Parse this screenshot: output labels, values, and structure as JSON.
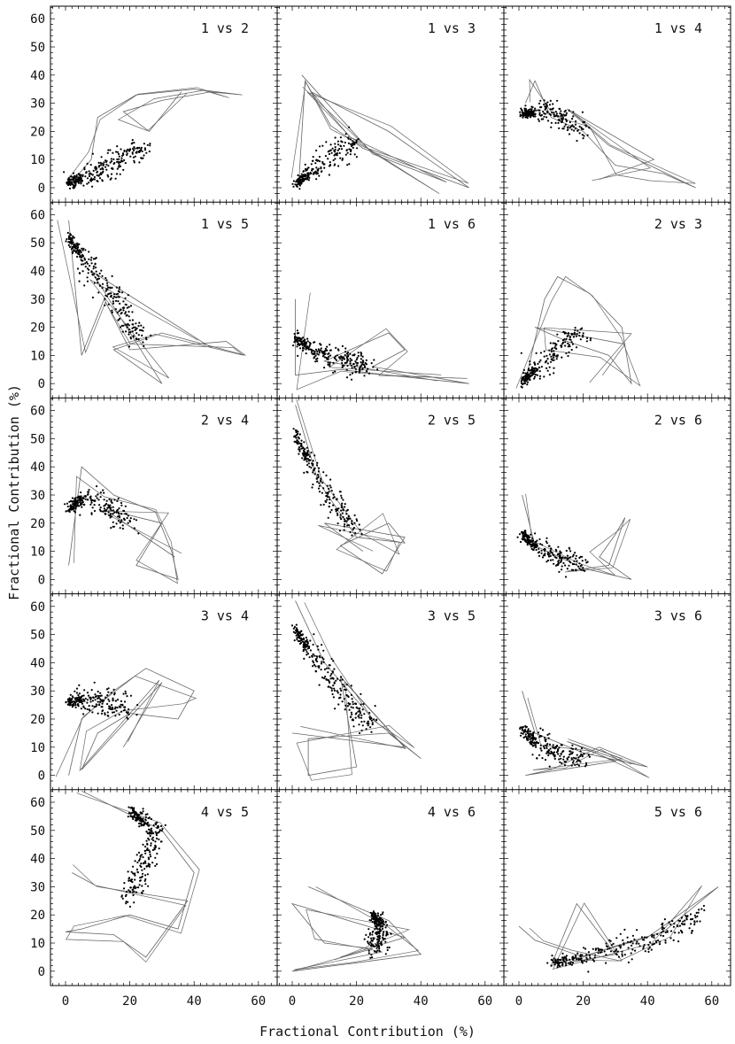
{
  "figure": {
    "x_axis_label": "Fractional Contribution   (%)",
    "y_axis_label": "Fractional Contribution   (%)"
  },
  "chart_data": {
    "type": "scatter",
    "layout": "5x3 grid of scatter plots with overlaid trajectory lines",
    "xlabel": "Fractional Contribution   (%)",
    "ylabel": "Fractional Contribution   (%)",
    "xlim": [
      -5,
      64
    ],
    "ylim": [
      -4,
      64
    ],
    "x_ticks": [
      0,
      20,
      40,
      60
    ],
    "y_ticks": [
      0,
      10,
      20,
      30,
      40,
      50,
      60
    ],
    "grid": false,
    "colors": {
      "points": "#000000",
      "lines": "#666666",
      "axes": "#000000"
    },
    "panels": [
      {
        "title": "1 vs 2",
        "cluster": [
          [
            1,
            2
          ],
          [
            5,
            3
          ],
          [
            10,
            6
          ],
          [
            15,
            9
          ],
          [
            20,
            12
          ],
          [
            24,
            14
          ]
        ],
        "trajectory": [
          [
            2,
            2
          ],
          [
            8,
            10
          ],
          [
            10,
            25
          ],
          [
            22,
            33
          ],
          [
            40,
            35
          ],
          [
            55,
            33
          ],
          [
            45,
            34
          ],
          [
            30,
            31
          ],
          [
            18,
            27
          ],
          [
            26,
            20
          ],
          [
            36,
            34
          ]
        ]
      },
      {
        "title": "1 vs 3",
        "cluster": [
          [
            1,
            1
          ],
          [
            5,
            5
          ],
          [
            10,
            9
          ],
          [
            15,
            13
          ],
          [
            20,
            16
          ]
        ],
        "trajectory": [
          [
            2,
            1
          ],
          [
            4,
            38
          ],
          [
            12,
            22
          ],
          [
            22,
            14
          ],
          [
            55,
            0
          ],
          [
            30,
            20
          ],
          [
            6,
            34
          ],
          [
            18,
            18
          ],
          [
            48,
            2
          ],
          [
            25,
            12
          ],
          [
            3,
            40
          ]
        ]
      },
      {
        "title": "1 vs 4",
        "cluster": [
          [
            1,
            26
          ],
          [
            5,
            27
          ],
          [
            10,
            27
          ],
          [
            15,
            24
          ],
          [
            20,
            20
          ]
        ],
        "trajectory": [
          [
            2,
            30
          ],
          [
            5,
            38
          ],
          [
            10,
            25
          ],
          [
            20,
            20
          ],
          [
            30,
            8
          ],
          [
            45,
            5
          ],
          [
            55,
            0
          ],
          [
            28,
            15
          ],
          [
            15,
            28
          ],
          [
            42,
            10
          ],
          [
            25,
            3
          ]
        ]
      },
      {
        "title": "1 vs 5",
        "cluster": [
          [
            1,
            52
          ],
          [
            5,
            45
          ],
          [
            10,
            38
          ],
          [
            15,
            30
          ],
          [
            20,
            22
          ],
          [
            24,
            15
          ]
        ],
        "trajectory": [
          [
            1,
            58
          ],
          [
            5,
            10
          ],
          [
            12,
            30
          ],
          [
            20,
            12
          ],
          [
            50,
            15
          ],
          [
            56,
            10
          ],
          [
            30,
            18
          ],
          [
            15,
            12
          ],
          [
            30,
            0
          ],
          [
            8,
            40
          ],
          [
            45,
            13
          ]
        ]
      },
      {
        "title": "1 vs 6",
        "cluster": [
          [
            1,
            16
          ],
          [
            5,
            13
          ],
          [
            10,
            10
          ],
          [
            15,
            8
          ],
          [
            20,
            7
          ],
          [
            24,
            6
          ]
        ],
        "trajectory": [
          [
            1,
            30
          ],
          [
            1,
            3
          ],
          [
            15,
            5
          ],
          [
            30,
            3
          ],
          [
            55,
            0
          ],
          [
            25,
            6
          ],
          [
            35,
            12
          ],
          [
            30,
            18
          ],
          [
            10,
            8
          ],
          [
            45,
            1
          ]
        ]
      },
      {
        "title": "2 vs 3",
        "cluster": [
          [
            1,
            1
          ],
          [
            5,
            5
          ],
          [
            10,
            10
          ],
          [
            15,
            15
          ],
          [
            20,
            18
          ]
        ],
        "trajectory": [
          [
            2,
            1
          ],
          [
            8,
            30
          ],
          [
            12,
            38
          ],
          [
            22,
            32
          ],
          [
            32,
            20
          ],
          [
            35,
            0
          ],
          [
            28,
            10
          ],
          [
            15,
            15
          ],
          [
            5,
            20
          ],
          [
            33,
            14
          ],
          [
            26,
            3
          ]
        ]
      },
      {
        "title": "2 vs 4",
        "cluster": [
          [
            1,
            25
          ],
          [
            5,
            29
          ],
          [
            10,
            27
          ],
          [
            15,
            24
          ],
          [
            20,
            20
          ]
        ],
        "trajectory": [
          [
            1,
            5
          ],
          [
            5,
            40
          ],
          [
            15,
            30
          ],
          [
            28,
            24
          ],
          [
            33,
            10
          ],
          [
            35,
            0
          ],
          [
            22,
            5
          ],
          [
            30,
            20
          ],
          [
            12,
            25
          ],
          [
            34,
            8
          ]
        ]
      },
      {
        "title": "2 vs 5",
        "cluster": [
          [
            1,
            52
          ],
          [
            5,
            42
          ],
          [
            10,
            32
          ],
          [
            15,
            24
          ],
          [
            20,
            18
          ]
        ],
        "trajectory": [
          [
            1,
            62
          ],
          [
            8,
            35
          ],
          [
            20,
            15
          ],
          [
            35,
            13
          ],
          [
            30,
            20
          ],
          [
            15,
            12
          ],
          [
            28,
            2
          ],
          [
            35,
            15
          ],
          [
            10,
            20
          ],
          [
            22,
            10
          ]
        ]
      },
      {
        "title": "2 vs 6",
        "cluster": [
          [
            1,
            16
          ],
          [
            5,
            12
          ],
          [
            10,
            9
          ],
          [
            15,
            7
          ],
          [
            20,
            5
          ]
        ],
        "trajectory": [
          [
            1,
            30
          ],
          [
            5,
            12
          ],
          [
            20,
            4
          ],
          [
            35,
            0
          ],
          [
            25,
            8
          ],
          [
            30,
            16
          ],
          [
            33,
            22
          ],
          [
            28,
            5
          ],
          [
            15,
            3
          ]
        ]
      },
      {
        "title": "3 vs 4",
        "cluster": [
          [
            1,
            26
          ],
          [
            5,
            27
          ],
          [
            10,
            27
          ],
          [
            15,
            25
          ],
          [
            20,
            24
          ]
        ],
        "trajectory": [
          [
            1,
            0
          ],
          [
            5,
            20
          ],
          [
            15,
            30
          ],
          [
            25,
            38
          ],
          [
            40,
            30
          ],
          [
            35,
            20
          ],
          [
            20,
            22
          ],
          [
            10,
            15
          ],
          [
            5,
            2
          ],
          [
            30,
            33
          ],
          [
            18,
            10
          ]
        ]
      },
      {
        "title": "3 vs 5",
        "cluster": [
          [
            1,
            52
          ],
          [
            5,
            45
          ],
          [
            10,
            38
          ],
          [
            15,
            30
          ],
          [
            20,
            22
          ],
          [
            25,
            18
          ]
        ],
        "trajectory": [
          [
            1,
            62
          ],
          [
            10,
            40
          ],
          [
            25,
            20
          ],
          [
            40,
            6
          ],
          [
            30,
            15
          ],
          [
            5,
            13
          ],
          [
            5,
            0
          ],
          [
            20,
            3
          ],
          [
            15,
            35
          ],
          [
            35,
            10
          ],
          [
            0,
            15
          ]
        ]
      },
      {
        "title": "3 vs 6",
        "cluster": [
          [
            1,
            16
          ],
          [
            5,
            12
          ],
          [
            10,
            9
          ],
          [
            15,
            7
          ],
          [
            20,
            6
          ]
        ],
        "trajectory": [
          [
            1,
            30
          ],
          [
            5,
            15
          ],
          [
            20,
            8
          ],
          [
            40,
            3
          ],
          [
            25,
            10
          ],
          [
            10,
            2
          ],
          [
            2,
            0
          ],
          [
            30,
            5
          ],
          [
            15,
            12
          ],
          [
            35,
            4
          ]
        ]
      },
      {
        "title": "4 vs 5",
        "cluster": [
          [
            20,
            57
          ],
          [
            25,
            53
          ],
          [
            28,
            48
          ],
          [
            25,
            40
          ],
          [
            22,
            32
          ],
          [
            20,
            25
          ]
        ],
        "trajectory": [
          [
            5,
            64
          ],
          [
            30,
            50
          ],
          [
            40,
            35
          ],
          [
            35,
            15
          ],
          [
            20,
            20
          ],
          [
            5,
            15
          ],
          [
            0,
            14
          ],
          [
            15,
            13
          ],
          [
            25,
            5
          ],
          [
            38,
            25
          ],
          [
            10,
            30
          ],
          [
            2,
            35
          ]
        ]
      },
      {
        "title": "4 vs 6",
        "cluster": [
          [
            25,
            20
          ],
          [
            27,
            17
          ],
          [
            28,
            14
          ],
          [
            26,
            11
          ],
          [
            25,
            8
          ]
        ],
        "trajectory": [
          [
            5,
            30
          ],
          [
            30,
            18
          ],
          [
            40,
            6
          ],
          [
            20,
            3
          ],
          [
            0,
            0
          ],
          [
            25,
            8
          ],
          [
            10,
            10
          ],
          [
            0,
            24
          ],
          [
            35,
            12
          ],
          [
            15,
            5
          ]
        ]
      },
      {
        "title": "5 vs 6",
        "cluster": [
          [
            10,
            3
          ],
          [
            20,
            5
          ],
          [
            30,
            8
          ],
          [
            40,
            11
          ],
          [
            50,
            16
          ],
          [
            56,
            19
          ]
        ],
        "trajectory": [
          [
            0,
            16
          ],
          [
            5,
            11
          ],
          [
            20,
            5
          ],
          [
            30,
            9
          ],
          [
            45,
            14
          ],
          [
            62,
            30
          ],
          [
            40,
            12
          ],
          [
            10,
            2
          ],
          [
            18,
            24
          ],
          [
            30,
            6
          ],
          [
            15,
            3
          ]
        ]
      }
    ]
  }
}
